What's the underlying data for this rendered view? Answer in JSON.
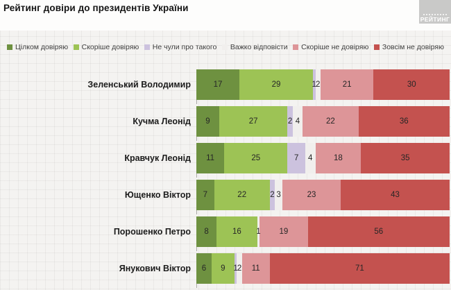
{
  "header": {
    "title": "Рейтинг довіри до президентів України",
    "logo_text": "РЕЙТИНГ"
  },
  "chart_data": {
    "type": "bar",
    "variant": "horizontal-stacked",
    "title": "Рейтинг довіри до президентів України",
    "unit": "percent",
    "xlim": [
      0,
      100
    ],
    "grid": true,
    "legend_position": "top",
    "value_labels": true,
    "categories": [
      "Зеленський Володимир",
      "Кучма Леонід",
      "Кравчук Леонід",
      "Ющенко Віктор",
      "Порошенко Петро",
      "Янукович Віктор"
    ],
    "series": [
      {
        "name": "Цілком довіряю",
        "color": "#6e9140",
        "values": [
          17,
          9,
          11,
          7,
          8,
          6
        ]
      },
      {
        "name": "Скоріше довіряю",
        "color": "#9dc355",
        "values": [
          29,
          27,
          25,
          22,
          16,
          9
        ]
      },
      {
        "name": "Не чули про такого",
        "color": "#ccc2de",
        "values": [
          1,
          2,
          7,
          2,
          0,
          1
        ]
      },
      {
        "name": "Важко відповісти",
        "color": "#f1efed",
        "values": [
          2,
          4,
          4,
          3,
          1,
          2
        ]
      },
      {
        "name": "Скоріше не довіряю",
        "color": "#dd9598",
        "values": [
          21,
          22,
          18,
          23,
          19,
          11
        ]
      },
      {
        "name": "Зовсім не довіряю",
        "color": "#c4524f",
        "values": [
          30,
          36,
          35,
          43,
          56,
          71
        ]
      }
    ]
  }
}
